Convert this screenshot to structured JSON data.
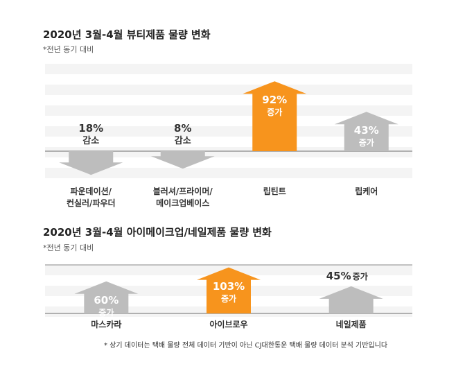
{
  "chart_data": [
    {
      "type": "arrow",
      "title": "2020년 3월-4월 뷰티제품 물량 변화",
      "subtitle": "*전년 동기 대비",
      "categories": [
        "파운데이션/\n컨실러/파우더",
        "블러셔/프라이머/\n메이크업베이스",
        "립틴트",
        "립케어"
      ],
      "values": [
        -18,
        -8,
        92,
        43
      ],
      "value_labels": [
        "18%",
        "8%",
        "92%",
        "43%"
      ],
      "change_labels": [
        "감소",
        "감소",
        "증가",
        "증가"
      ],
      "colors": [
        "#bdbdbd",
        "#bdbdbd",
        "#f7941d",
        "#bdbdbd"
      ]
    },
    {
      "type": "arrow",
      "title": "2020년 3월-4월 아이메이크업/네일제품 물량 변화",
      "subtitle": "*전년 동기 대비",
      "categories": [
        "마스카라",
        "아이브로우",
        "네일제품"
      ],
      "values": [
        60,
        103,
        45
      ],
      "value_labels": [
        "60%",
        "103%",
        "45%"
      ],
      "change_labels": [
        "증가",
        "증가",
        "증가"
      ],
      "colors": [
        "#bdbdbd",
        "#f7941d",
        "#bdbdbd"
      ]
    }
  ],
  "footnote": "* 상기 데이터는 택배 물량 전체 데이터 기반이 아닌 CJ대한통운 택배 물량 데이터 분석 기반입니다"
}
